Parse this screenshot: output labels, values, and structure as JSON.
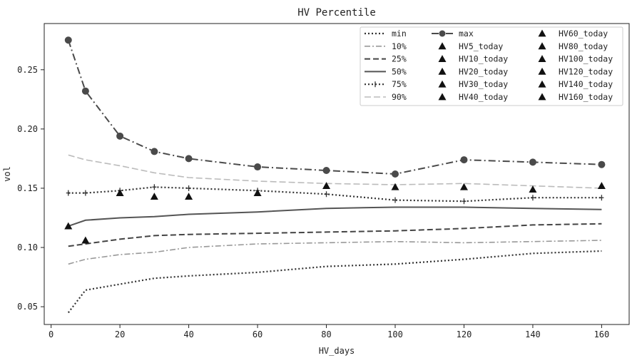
{
  "chart_data": {
    "type": "line",
    "title": "HV Percentile",
    "xlabel": "HV_days",
    "ylabel": "vol",
    "xlim": [
      -2,
      168
    ],
    "ylim": [
      0.035,
      0.289
    ],
    "xticks": [
      0,
      20,
      40,
      60,
      80,
      100,
      120,
      140,
      160
    ],
    "yticks": [
      0.05,
      0.1,
      0.15,
      0.2,
      0.25
    ],
    "ytick_labels": [
      "0.05",
      "0.10",
      "0.15",
      "0.20",
      "0.25"
    ],
    "grid": false,
    "legend_placement": "top-right",
    "x": [
      5,
      10,
      20,
      30,
      40,
      60,
      80,
      100,
      120,
      140,
      160
    ],
    "series": [
      {
        "name": "min",
        "style": "dotted",
        "color": "#333333",
        "values": [
          0.045,
          0.064,
          0.069,
          0.074,
          0.076,
          0.079,
          0.084,
          0.086,
          0.09,
          0.095,
          0.097
        ]
      },
      {
        "name": "10%",
        "style": "dashdot",
        "color": "#999999",
        "values": [
          0.086,
          0.09,
          0.094,
          0.096,
          0.1,
          0.103,
          0.104,
          0.105,
          0.104,
          0.105,
          0.106
        ]
      },
      {
        "name": "25%",
        "style": "dashed",
        "color": "#444444",
        "values": [
          0.101,
          0.103,
          0.107,
          0.11,
          0.111,
          0.112,
          0.113,
          0.114,
          0.116,
          0.119,
          0.12
        ]
      },
      {
        "name": "50%",
        "style": "solid",
        "color": "#555555",
        "values": [
          0.118,
          0.123,
          0.125,
          0.126,
          0.128,
          0.13,
          0.133,
          0.134,
          0.134,
          0.133,
          0.132
        ]
      },
      {
        "name": "75%",
        "style": "dotted-plus",
        "color": "#333333",
        "values": [
          0.146,
          0.146,
          0.148,
          0.151,
          0.15,
          0.148,
          0.145,
          0.14,
          0.139,
          0.142,
          0.142
        ]
      },
      {
        "name": "90%",
        "style": "dashed-light",
        "color": "#bbbbbb",
        "values": [
          0.178,
          0.174,
          0.169,
          0.163,
          0.159,
          0.156,
          0.154,
          0.153,
          0.154,
          0.152,
          0.15
        ]
      },
      {
        "name": "max",
        "style": "dashdot-marker",
        "color": "#4a4a4a",
        "values": [
          0.275,
          0.232,
          0.194,
          0.181,
          0.175,
          0.168,
          0.165,
          0.162,
          0.174,
          0.172,
          0.17
        ]
      }
    ],
    "today_points": [
      {
        "name": "HV5_today",
        "x": 5,
        "y": 0.118
      },
      {
        "name": "HV10_today",
        "x": 10,
        "y": 0.106
      },
      {
        "name": "HV20_today",
        "x": 20,
        "y": 0.146
      },
      {
        "name": "HV30_today",
        "x": 30,
        "y": 0.143
      },
      {
        "name": "HV40_today",
        "x": 40,
        "y": 0.143
      },
      {
        "name": "HV60_today",
        "x": 60,
        "y": 0.146
      },
      {
        "name": "HV80_today",
        "x": 80,
        "y": 0.152
      },
      {
        "name": "HV100_today",
        "x": 100,
        "y": 0.151
      },
      {
        "name": "HV120_today",
        "x": 120,
        "y": 0.151
      },
      {
        "name": "HV140_today",
        "x": 140,
        "y": 0.149
      },
      {
        "name": "HV160_today",
        "x": 160,
        "y": 0.152
      }
    ]
  }
}
